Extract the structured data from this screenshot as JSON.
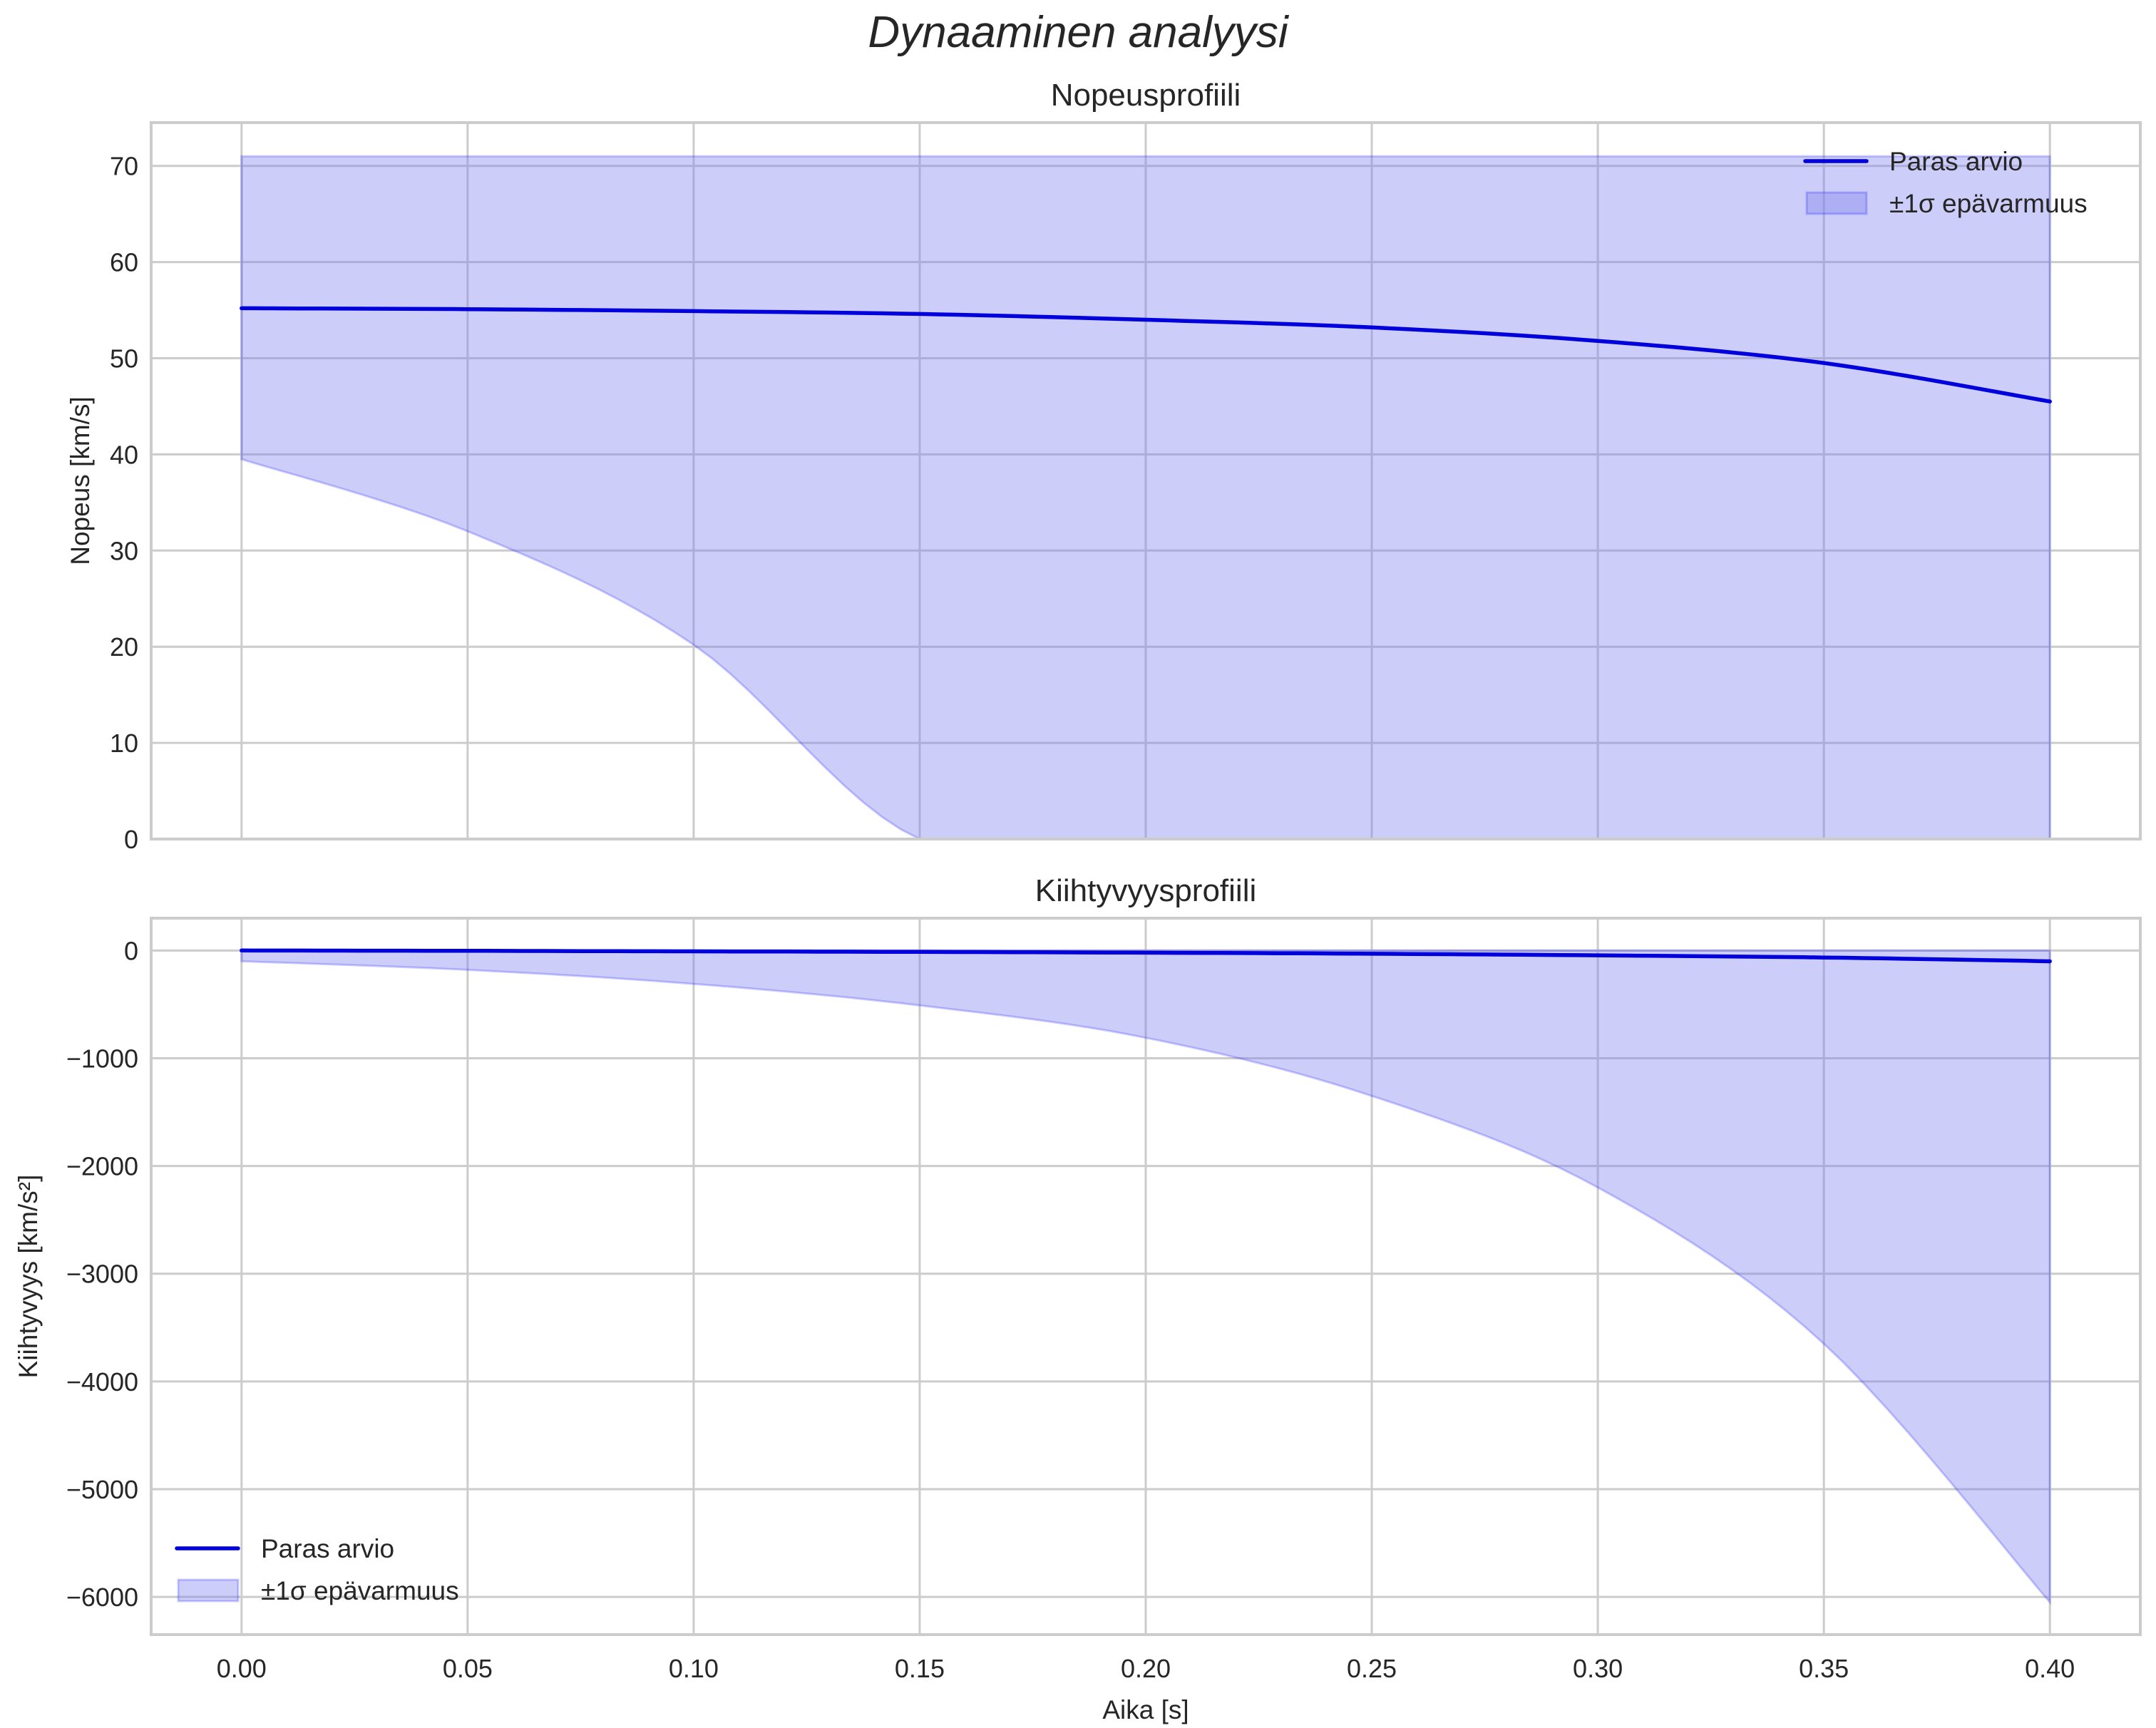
{
  "figure": {
    "title": "Dynaaminen analyysi"
  },
  "colors": {
    "line": "#0000dd",
    "band_fill": "#7b7bf0",
    "grid": "#cccccc",
    "text": "#262626"
  },
  "chart_data": [
    {
      "type": "line",
      "title": "Nopeusprofiili",
      "xlabel": "",
      "ylabel": "Nopeus [km/s]",
      "xlim": [
        -0.02,
        0.42
      ],
      "ylim": [
        0,
        74.5
      ],
      "xticks": [
        "0.00",
        "0.05",
        "0.10",
        "0.15",
        "0.20",
        "0.25",
        "0.30",
        "0.35",
        "0.40"
      ],
      "yticks": [
        "0",
        "10",
        "20",
        "30",
        "40",
        "50",
        "60",
        "70"
      ],
      "grid": true,
      "legend_position": "upper right",
      "x": [
        0.0,
        0.05,
        0.1,
        0.15,
        0.2,
        0.25,
        0.3,
        0.35,
        0.4
      ],
      "series": [
        {
          "name": "Paras arvio",
          "kind": "line",
          "values": [
            55.2,
            55.1,
            54.9,
            54.6,
            54.0,
            53.2,
            51.8,
            49.5,
            45.5
          ]
        },
        {
          "name": "±1σ epävarmuus",
          "kind": "band",
          "lower": [
            39.5,
            32.0,
            20.2,
            0.0,
            0.0,
            0.0,
            0.0,
            0.0,
            0.0
          ],
          "upper": [
            71.0,
            71.0,
            71.0,
            71.0,
            71.0,
            71.0,
            71.0,
            71.0,
            71.0
          ]
        }
      ]
    },
    {
      "type": "line",
      "title": "Kiihtyvyysprofiili",
      "xlabel": "Aika [s]",
      "ylabel": "Kiihtyvyys [km/s²]",
      "xlim": [
        -0.02,
        0.42
      ],
      "ylim": [
        -6350,
        300
      ],
      "xticks": [
        "0.00",
        "0.05",
        "0.10",
        "0.15",
        "0.20",
        "0.25",
        "0.30",
        "0.35",
        "0.40"
      ],
      "yticks": [
        "0",
        "−1000",
        "−2000",
        "−3000",
        "−4000",
        "−5000",
        "−6000"
      ],
      "grid": true,
      "legend_position": "lower left",
      "x": [
        0.0,
        0.05,
        0.1,
        0.15,
        0.2,
        0.25,
        0.3,
        0.35,
        0.4
      ],
      "series": [
        {
          "name": "Paras arvio",
          "kind": "line",
          "values": [
            0,
            -3,
            -8,
            -13,
            -20,
            -30,
            -45,
            -65,
            -100
          ]
        },
        {
          "name": "±1σ epävarmuus",
          "kind": "band",
          "lower": [
            -100,
            -180,
            -310,
            -510,
            -810,
            -1350,
            -2200,
            -3650,
            -6050
          ],
          "upper": [
            0,
            0,
            0,
            0,
            0,
            0,
            0,
            0,
            0
          ]
        }
      ]
    }
  ],
  "legend": {
    "line_label": "Paras arvio",
    "band_label": "±1σ epävarmuus"
  }
}
